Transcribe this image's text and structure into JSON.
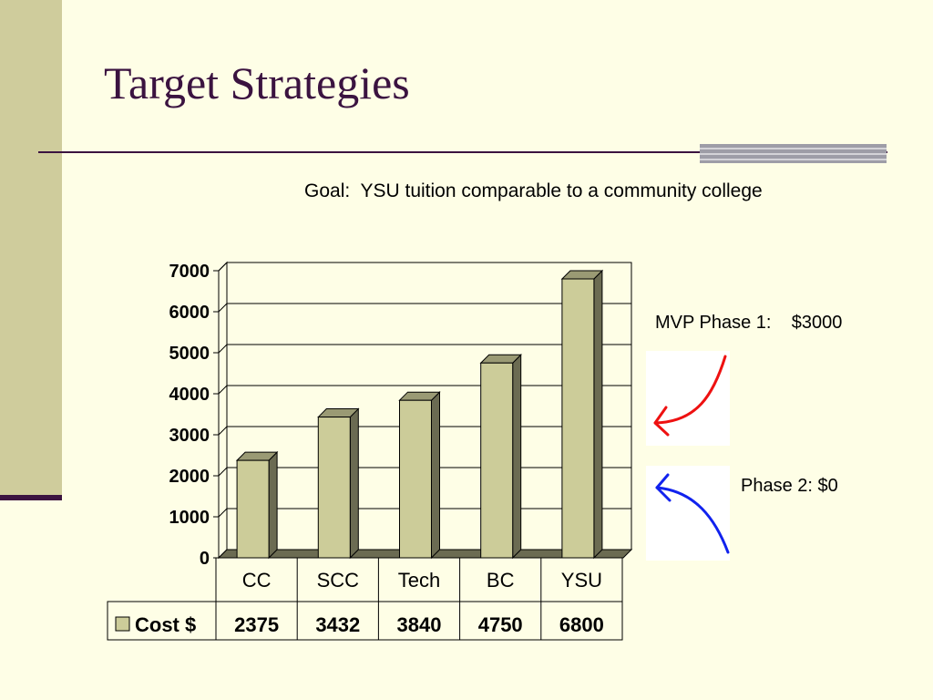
{
  "slide": {
    "title": "Target Strategies",
    "goal": "Goal:  YSU tuition comparable to a community college",
    "phase1_label": "MVP Phase 1:    $3000",
    "phase2_label": "Phase 2: $0"
  },
  "colors": {
    "background": "#fefee6",
    "side_band": "#cfcc9c",
    "title_color": "#3b1340",
    "bar_front": "#cccc99",
    "bar_side": "#6b6b52",
    "bar_top": "#9a9a74",
    "floor": "#6b6b52",
    "arrow_phase1": "#ee1111",
    "arrow_phase2": "#1122ee"
  },
  "icons": {
    "phase1_arrow": "red-curved-arrow-down-left-icon",
    "phase2_arrow": "blue-curved-arrow-up-left-icon"
  },
  "chart_data": {
    "type": "bar",
    "categories": [
      "CC",
      "SCC",
      "Tech",
      "BC",
      "YSU"
    ],
    "series": [
      {
        "name": "Cost $",
        "values": [
          2375,
          3432,
          3840,
          4750,
          6800
        ]
      }
    ],
    "ylim": [
      0,
      7000
    ],
    "yticks": [
      0,
      1000,
      2000,
      3000,
      4000,
      5000,
      6000,
      7000
    ],
    "grid": true,
    "legend": "data-table-left",
    "data_table": true
  }
}
